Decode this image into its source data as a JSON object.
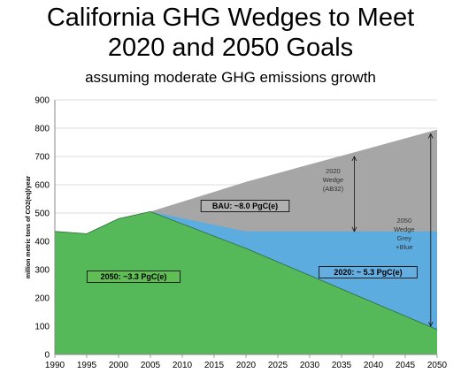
{
  "title_line1": "California GHG Wedges to Meet",
  "title_line2": "2020 and 2050 Goals",
  "subtitle": "assuming moderate GHG emissions growth",
  "colors": {
    "bau_grey": "#a6a6a6",
    "wedge_blue": "#5cacdf",
    "green": "#55b95a",
    "green_label_bg": "#5fbf55",
    "blue_label_bg": "#66aee0",
    "grey_label_bg": "#b0b0b0"
  },
  "chart_data": {
    "type": "area",
    "ylabel": "million metric tons of CO2(eq)/year",
    "xlabel": "",
    "xlim": [
      1990,
      2050
    ],
    "ylim": [
      0,
      900
    ],
    "x_ticks": [
      "1990",
      "1995",
      "2000",
      "2005",
      "2010",
      "2015",
      "2020",
      "2025",
      "2030",
      "2035",
      "2040",
      "2045",
      "2050"
    ],
    "y_ticks": [
      "0",
      "100",
      "200",
      "300",
      "400",
      "500",
      "600",
      "700",
      "800",
      "900"
    ],
    "grid": true,
    "series": [
      {
        "name": "BAU: ~8.0 PgC(e)",
        "values": [
          [
            1990,
            435
          ],
          [
            1995,
            427
          ],
          [
            2000,
            480
          ],
          [
            2005,
            505
          ],
          [
            2020,
            610
          ],
          [
            2050,
            795
          ]
        ]
      },
      {
        "name": "2020: ~ 5.3 PgC(e)",
        "values": [
          [
            1990,
            435
          ],
          [
            1995,
            427
          ],
          [
            2000,
            480
          ],
          [
            2005,
            505
          ],
          [
            2020,
            435
          ],
          [
            2050,
            435
          ]
        ]
      },
      {
        "name": "2050: ~3.3 PgC(e)",
        "values": [
          [
            1990,
            435
          ],
          [
            1995,
            427
          ],
          [
            2000,
            480
          ],
          [
            2005,
            505
          ],
          [
            2020,
            375
          ],
          [
            2050,
            88
          ]
        ]
      }
    ],
    "annotations": {
      "wedge_2020": {
        "lines": [
          "2020",
          "Wedge",
          "(AB32)"
        ],
        "year": 2037,
        "y_from": 435,
        "y_to": 700
      },
      "wedge_2050": {
        "lines": [
          "2050",
          "Wedge",
          "Grey",
          "+Blue"
        ],
        "year": 2049,
        "y_from": 100,
        "y_to": 780
      }
    }
  }
}
